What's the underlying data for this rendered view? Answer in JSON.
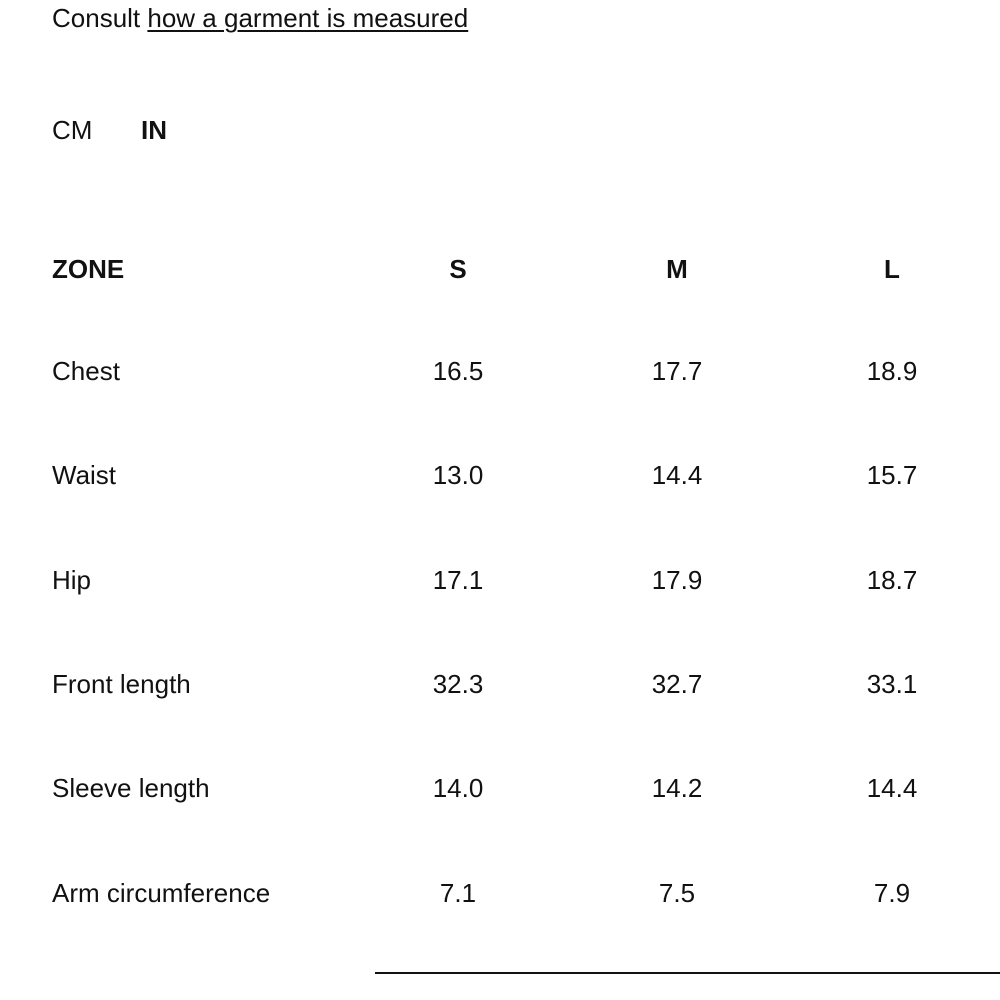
{
  "intro": {
    "text": "Consult",
    "link": "how a garment is measured"
  },
  "units": {
    "options": [
      "CM",
      "IN"
    ]
  },
  "table": {
    "header": [
      "ZONE",
      "S",
      "M",
      "L"
    ],
    "rows": [
      [
        "Chest",
        "16.5",
        "17.7",
        "18.9"
      ],
      [
        "Waist",
        "13.0",
        "14.4",
        "15.7"
      ],
      [
        "Hip",
        "17.1",
        "17.9",
        "18.7"
      ],
      [
        "Front length",
        "32.3",
        "32.7",
        "33.1"
      ],
      [
        "Sleeve length",
        "14.0",
        "14.2",
        "14.4"
      ],
      [
        "Arm circumference",
        "7.1",
        "7.5",
        "7.9"
      ]
    ]
  }
}
